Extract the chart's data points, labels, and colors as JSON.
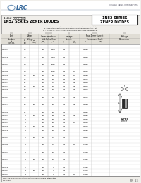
{
  "company_full": "LESHAN RADIO COMPANY LTD.",
  "title_cn": "1N52 系列稳压二极管",
  "title_en": "1N52 SERIES ZENER DIODES",
  "series_box_line1": "1N52 SERIES",
  "series_box_line2": "ZENER DIODES",
  "bg_color": "#f0eeea",
  "page_num": "2N  63",
  "table_rows": [
    [
      "1N5221B",
      "2.4",
      "",
      "20",
      "30000",
      "600",
      "",
      "0.2200"
    ],
    [
      "1N5222B",
      "2.5",
      "",
      "20",
      "30000",
      "600",
      "",
      "0.2250"
    ],
    [
      "1N5223B",
      "2.7",
      "",
      "20",
      "30000",
      "600",
      "",
      "0.2287"
    ],
    [
      "1N5224B",
      "2.8",
      "",
      "20",
      "20000",
      "600",
      "",
      "0.2360"
    ],
    [
      "1N5225B",
      "3.0",
      "250",
      "20",
      "10000",
      "600",
      "1.8",
      "0.2387"
    ],
    [
      "1N5226B",
      "3.3",
      "",
      "20",
      "5000",
      "600",
      "",
      "0.2461"
    ],
    [
      "1N5227B",
      "3.6",
      "",
      "20",
      "2500",
      "600",
      "1.0",
      "0.2529"
    ],
    [
      "1N5228B",
      "3.9",
      "",
      "20",
      "1000",
      "600",
      "1.0",
      "0.2605"
    ],
    [
      "1N5229B",
      "4.3",
      "250",
      "20",
      "550",
      "600",
      "1.0",
      "0.2683"
    ],
    [
      "1N5230B",
      "4.7",
      "",
      "20",
      "500",
      "600",
      "0.5",
      "0.2777"
    ],
    [
      "1N5231B",
      "5.1",
      "",
      "20",
      "475",
      "600",
      "0.5",
      "0.2829"
    ],
    [
      "1N5232B",
      "5.6",
      "250",
      "20",
      "100",
      "700",
      "0.5",
      "0.2915"
    ],
    [
      "1N5233B",
      "6.0",
      "",
      "20",
      "100",
      "700",
      "0.5",
      "0.2972"
    ],
    [
      "1N5234B",
      "6.2",
      "250",
      "20",
      "100",
      "700",
      "0.5",
      "0.3000"
    ],
    [
      "1N5235B",
      "6.8",
      "",
      "20",
      "100",
      "700",
      "0.5",
      "0.3071"
    ],
    [
      "1N5236B",
      "7.5",
      "",
      "20",
      "100",
      "700",
      "0.5",
      "0.3176"
    ],
    [
      "1N5237B",
      "8.2",
      "250",
      "20",
      "75",
      "700",
      "0.5",
      "0.3254"
    ],
    [
      "1N5238B",
      "8.7",
      "",
      "20",
      "75",
      "700",
      "",
      "0.3320"
    ],
    [
      "1N5239B",
      "9.1",
      "",
      "20",
      "50",
      "700",
      "",
      "0.3357"
    ],
    [
      "1N5240B",
      "10",
      "250",
      "20",
      "35",
      "700",
      "0.5",
      "0.3481"
    ],
    [
      "1N5241B",
      "11",
      "",
      "20",
      "25",
      "700",
      "",
      "0.3562"
    ],
    [
      "1N5242B",
      "12",
      "",
      "20",
      "25",
      "700",
      "1.0",
      "0.3640"
    ],
    [
      "1N5243B",
      "13",
      "250",
      "20",
      "25",
      "700",
      "",
      "0.3712"
    ],
    [
      "1N5244B",
      "14",
      "",
      "20",
      "25",
      "700",
      "",
      "0.3782"
    ],
    [
      "1N5245B",
      "15",
      "",
      "20",
      "25",
      "700",
      "1.0",
      "0.3855"
    ],
    [
      "1N5246B",
      "16",
      "250",
      "20",
      "17",
      "700",
      "",
      "0.3926"
    ],
    [
      "1N5247B",
      "17",
      "",
      "20",
      "17",
      "700",
      "",
      "0.3994"
    ],
    [
      "1N5248B",
      "18",
      "",
      "20",
      "17",
      "700",
      "1.5",
      "0.4063"
    ],
    [
      "1N5249B",
      "19",
      "250",
      "20",
      "10",
      "700",
      "",
      "0.4131"
    ],
    [
      "1N5250B",
      "20",
      "",
      "20",
      "10",
      "700",
      "",
      "0.4198"
    ],
    [
      "1N5251B",
      "22",
      "",
      "20",
      "10",
      "700",
      "",
      "0.4330"
    ],
    [
      "1N5252B",
      "24",
      "250",
      "20",
      "10",
      "700",
      "",
      "0.4461"
    ],
    [
      "1N5253B",
      "25",
      "",
      "20",
      "10",
      "700",
      "",
      "0.4526"
    ],
    [
      "1N5254B",
      "27",
      "",
      "20",
      "7",
      "700",
      "",
      "0.4652"
    ],
    [
      "1N5255B",
      "28",
      "250",
      "20",
      "7",
      "700",
      "",
      "0.4715"
    ],
    [
      "1N5256B",
      "30",
      "",
      "20",
      "7",
      "700",
      "2.0",
      "0.4839"
    ]
  ]
}
